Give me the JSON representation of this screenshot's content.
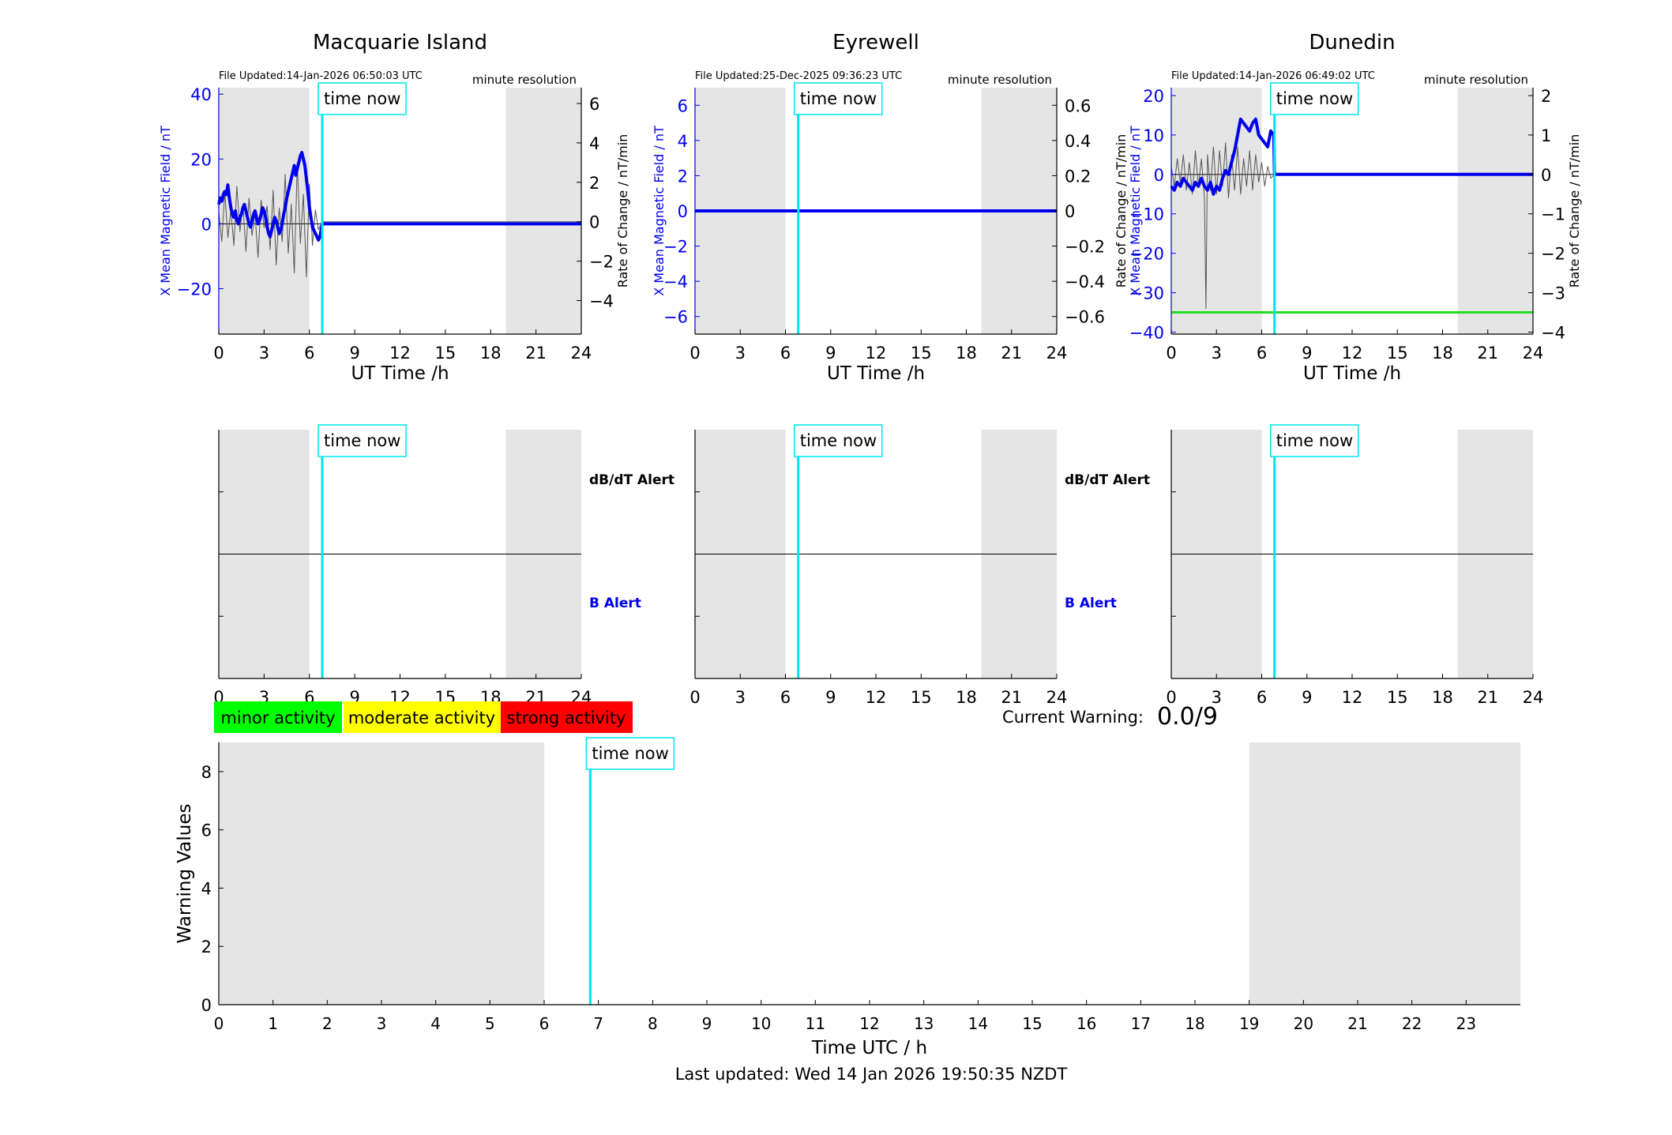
{
  "labels": {
    "time_now": "time now",
    "ut_time": "UT Time /h",
    "x_field": "X Mean Magnetic Field / nT",
    "rate": "Rate of Change / nT/min",
    "minute_resolution": "minute resolution",
    "dbdt_alert": "dB/dT Alert",
    "b_alert": "B Alert",
    "minor": "minor activity",
    "moderate": "moderate activity",
    "strong": "strong activity",
    "current_warning_label": "Current Warning:",
    "current_warning_value": "0.0/9",
    "warning_values": "Warning Values",
    "time_utc": "Time UTC / h",
    "last_updated": "Last updated: Wed 14 Jan 2026 19:50:35 NZDT"
  },
  "colors": {
    "field_line": "#0000ee",
    "rate_line": "#555555",
    "time_now_line": "#00e5ee",
    "night_shading": "#e5e5e5",
    "minor": "#00ff00",
    "moderate": "#ffff00",
    "strong": "#ff0000",
    "threshold_line": "#22dd22"
  },
  "chart_data": [
    {
      "type": "line",
      "title": "Macquarie Island",
      "file_updated": "File Updated:14-Jan-2026 06:50:03 UTC",
      "resolution": "minute resolution",
      "xlabel": "UT Time /h",
      "xlim": [
        0,
        24
      ],
      "xticks": [
        0,
        3,
        6,
        9,
        12,
        15,
        18,
        21,
        24
      ],
      "ylim_left": [
        -34,
        42
      ],
      "yticks_left": [
        -20,
        0,
        20,
        40
      ],
      "ylabel_left": "X Mean Magnetic Field / nT",
      "ylim_right": [
        -5.7,
        6.8
      ],
      "yticks_right": [
        -4,
        -2,
        0,
        2,
        4,
        6
      ],
      "ylabel_right": "Rate of Change / nT/min",
      "night_shading": [
        [
          0,
          6
        ],
        [
          19,
          24
        ]
      ],
      "time_now": 6.85,
      "series": [
        {
          "axis": "left",
          "x": [
            0,
            0.1,
            0.2,
            0.3,
            0.4,
            0.5,
            0.6,
            0.7,
            0.8,
            0.9,
            1.0,
            1.1,
            1.2,
            1.3,
            1.4,
            1.5,
            1.6,
            1.7,
            1.8,
            1.9,
            2.0,
            2.1,
            2.2,
            2.3,
            2.4,
            2.5,
            2.6,
            2.7,
            2.8,
            2.9,
            3.0,
            3.1,
            3.2,
            3.3,
            3.4,
            3.5,
            3.6,
            3.7,
            3.8,
            3.9,
            4.0,
            4.1,
            4.2,
            4.3,
            4.4,
            4.5,
            4.6,
            4.7,
            4.8,
            4.9,
            5.0,
            5.1,
            5.2,
            5.3,
            5.4,
            5.5,
            5.6,
            5.7,
            5.8,
            5.9,
            6.0,
            6.1,
            6.2,
            6.3,
            6.4,
            6.5,
            6.6,
            6.7,
            6.85,
            7,
            24
          ],
          "values": [
            6,
            8,
            7,
            9,
            10,
            9,
            12,
            8,
            5,
            3,
            2,
            4,
            1,
            0,
            2,
            3,
            5,
            6,
            4,
            2,
            0,
            -1,
            1,
            3,
            4,
            2,
            0,
            1,
            3,
            5,
            4,
            2,
            -1,
            -3,
            -4,
            -2,
            0,
            2,
            1,
            -1,
            -3,
            -2,
            0,
            3,
            5,
            8,
            10,
            12,
            14,
            16,
            18,
            15,
            17,
            19,
            21,
            22,
            20,
            18,
            14,
            10,
            5,
            2,
            -1,
            -2,
            -3,
            -4,
            -5,
            -4,
            0,
            0,
            0
          ]
        },
        {
          "axis": "right",
          "x": [
            0,
            0.2,
            0.4,
            0.6,
            0.8,
            1.0,
            1.2,
            1.4,
            1.6,
            1.8,
            2.0,
            2.2,
            2.4,
            2.6,
            2.8,
            3.0,
            3.2,
            3.4,
            3.6,
            3.8,
            4.0,
            4.2,
            4.4,
            4.6,
            4.8,
            5.0,
            5.2,
            5.4,
            5.6,
            5.8,
            6.0,
            6.2,
            6.4,
            6.6,
            6.85,
            7,
            24
          ],
          "values": [
            0.5,
            -1,
            1.5,
            -0.8,
            0.6,
            -1.2,
            1.8,
            -0.5,
            0.9,
            -1.5,
            1.2,
            -0.7,
            0.4,
            -1.8,
            1.1,
            -0.3,
            0.8,
            -1.4,
            1.6,
            -2.2,
            0.7,
            -1.0,
            2.4,
            -1.6,
            0.9,
            -2.6,
            3.0,
            -1.1,
            1.4,
            -2.8,
            1.9,
            -1.2,
            0.6,
            -0.4,
            0,
            0,
            0
          ]
        }
      ]
    },
    {
      "type": "line",
      "title": "Eyrewell",
      "file_updated": "File Updated:25-Dec-2025 09:36:23 UTC",
      "resolution": "minute resolution",
      "xlabel": "UT Time /h",
      "xlim": [
        0,
        24
      ],
      "xticks": [
        0,
        3,
        6,
        9,
        12,
        15,
        18,
        21,
        24
      ],
      "ylim_left": [
        -7,
        7
      ],
      "yticks_left": [
        -6,
        -4,
        -2,
        0,
        2,
        4,
        6
      ],
      "ylabel_left": "X Mean Magnetic Field / nT",
      "ylim_right": [
        -0.7,
        0.7
      ],
      "yticks_right": [
        -0.6,
        -0.4,
        -0.2,
        0,
        0.2,
        0.4,
        0.6
      ],
      "ylabel_right": "",
      "night_shading": [
        [
          0,
          6
        ],
        [
          19,
          24
        ]
      ],
      "time_now": 6.85,
      "series": [
        {
          "axis": "left",
          "x": [
            0,
            24
          ],
          "values": [
            0,
            0
          ]
        }
      ]
    },
    {
      "type": "line",
      "title": "Dunedin",
      "file_updated": "File Updated:14-Jan-2026 06:49:02 UTC",
      "resolution": "minute resolution",
      "xlabel": "UT Time /h",
      "xlim": [
        0,
        24
      ],
      "xticks": [
        0,
        3,
        6,
        9,
        12,
        15,
        18,
        21,
        24
      ],
      "ylim_left": [
        -40.5,
        22
      ],
      "yticks_left": [
        -40,
        -30,
        -20,
        -10,
        0,
        10,
        20
      ],
      "ylabel_left": "X Mean Magnetic Field / nT",
      "ylabel_left_2": "Rate of Change / nT/min",
      "ylim_right": [
        -4.05,
        2.2
      ],
      "yticks_right": [
        -4,
        -3,
        -2,
        -1,
        0,
        1,
        2
      ],
      "ylabel_right": "Rate of Change / nT/min",
      "night_shading": [
        [
          0,
          6
        ],
        [
          19,
          24
        ]
      ],
      "time_now": 6.85,
      "threshold": -35,
      "series": [
        {
          "axis": "left",
          "x": [
            0,
            0.2,
            0.4,
            0.6,
            0.8,
            1.0,
            1.2,
            1.4,
            1.6,
            1.8,
            2.0,
            2.2,
            2.4,
            2.6,
            2.8,
            3.0,
            3.2,
            3.4,
            3.6,
            3.8,
            4.0,
            4.2,
            4.4,
            4.6,
            4.8,
            5.0,
            5.2,
            5.4,
            5.6,
            5.8,
            6.0,
            6.2,
            6.4,
            6.6,
            6.8,
            6.85,
            7,
            24
          ],
          "values": [
            -3,
            -4,
            -2,
            -3,
            -1,
            -2,
            -3,
            -4,
            -2,
            -3,
            -1,
            -3,
            -4,
            -2,
            -5,
            -3,
            -4,
            -1,
            1,
            0,
            3,
            6,
            10,
            14,
            13,
            12,
            11,
            13,
            14,
            10,
            9,
            8,
            7,
            11,
            10,
            0,
            0,
            0
          ]
        },
        {
          "axis": "right",
          "x": [
            0,
            0.2,
            0.4,
            0.6,
            0.8,
            1.0,
            1.2,
            1.4,
            1.6,
            1.8,
            2.0,
            2.2,
            2.3,
            2.4,
            2.6,
            2.8,
            3.0,
            3.2,
            3.4,
            3.6,
            3.8,
            4.0,
            4.2,
            4.4,
            4.6,
            4.8,
            5.0,
            5.2,
            5.4,
            5.6,
            5.8,
            6.0,
            6.2,
            6.4,
            6.6,
            6.85,
            7,
            24
          ],
          "values": [
            0.2,
            -0.3,
            0.4,
            -0.2,
            0.5,
            -0.4,
            0.3,
            -0.5,
            0.6,
            -0.3,
            0.4,
            -0.6,
            -3.4,
            0.5,
            -0.4,
            0.7,
            -0.5,
            0.6,
            -0.3,
            0.8,
            -0.6,
            0.5,
            -0.4,
            0.7,
            -0.5,
            0.4,
            -0.3,
            0.6,
            -0.4,
            0.5,
            -0.2,
            0.3,
            -0.3,
            0.2,
            -0.1,
            0,
            0,
            0
          ]
        }
      ]
    },
    {
      "type": "line",
      "title": "",
      "xlim": [
        0,
        24
      ],
      "xticks": [
        0,
        3,
        6,
        9,
        12,
        15,
        18,
        21,
        24
      ],
      "night_shading": [
        [
          0,
          6
        ],
        [
          19,
          24
        ]
      ],
      "time_now": 6.85,
      "right_labels": [
        "dB/dT Alert",
        "B Alert"
      ],
      "series": []
    },
    {
      "type": "line",
      "title": "",
      "xlim": [
        0,
        24
      ],
      "xticks": [
        0,
        3,
        6,
        9,
        12,
        15,
        18,
        21,
        24
      ],
      "night_shading": [
        [
          0,
          6
        ],
        [
          19,
          24
        ]
      ],
      "time_now": 6.85,
      "right_labels": [
        "dB/dT Alert",
        "B Alert"
      ],
      "series": []
    },
    {
      "type": "line",
      "title": "",
      "xlim": [
        0,
        24
      ],
      "xticks": [
        0,
        3,
        6,
        9,
        12,
        15,
        18,
        21,
        24
      ],
      "night_shading": [
        [
          0,
          6
        ],
        [
          19,
          24
        ]
      ],
      "time_now": 6.85,
      "series": []
    },
    {
      "type": "bar",
      "title": "",
      "xlabel": "Time UTC / h",
      "ylabel": "Warning Values",
      "xlim": [
        0,
        24
      ],
      "xticks": [
        0,
        1,
        2,
        3,
        4,
        5,
        6,
        7,
        8,
        9,
        10,
        11,
        12,
        13,
        14,
        15,
        16,
        17,
        18,
        19,
        20,
        21,
        22,
        23
      ],
      "ylim": [
        0,
        9
      ],
      "yticks": [
        0,
        2,
        4,
        6,
        8
      ],
      "night_shading": [
        [
          0,
          6
        ],
        [
          19,
          24
        ]
      ],
      "time_now": 6.85,
      "values": []
    }
  ]
}
